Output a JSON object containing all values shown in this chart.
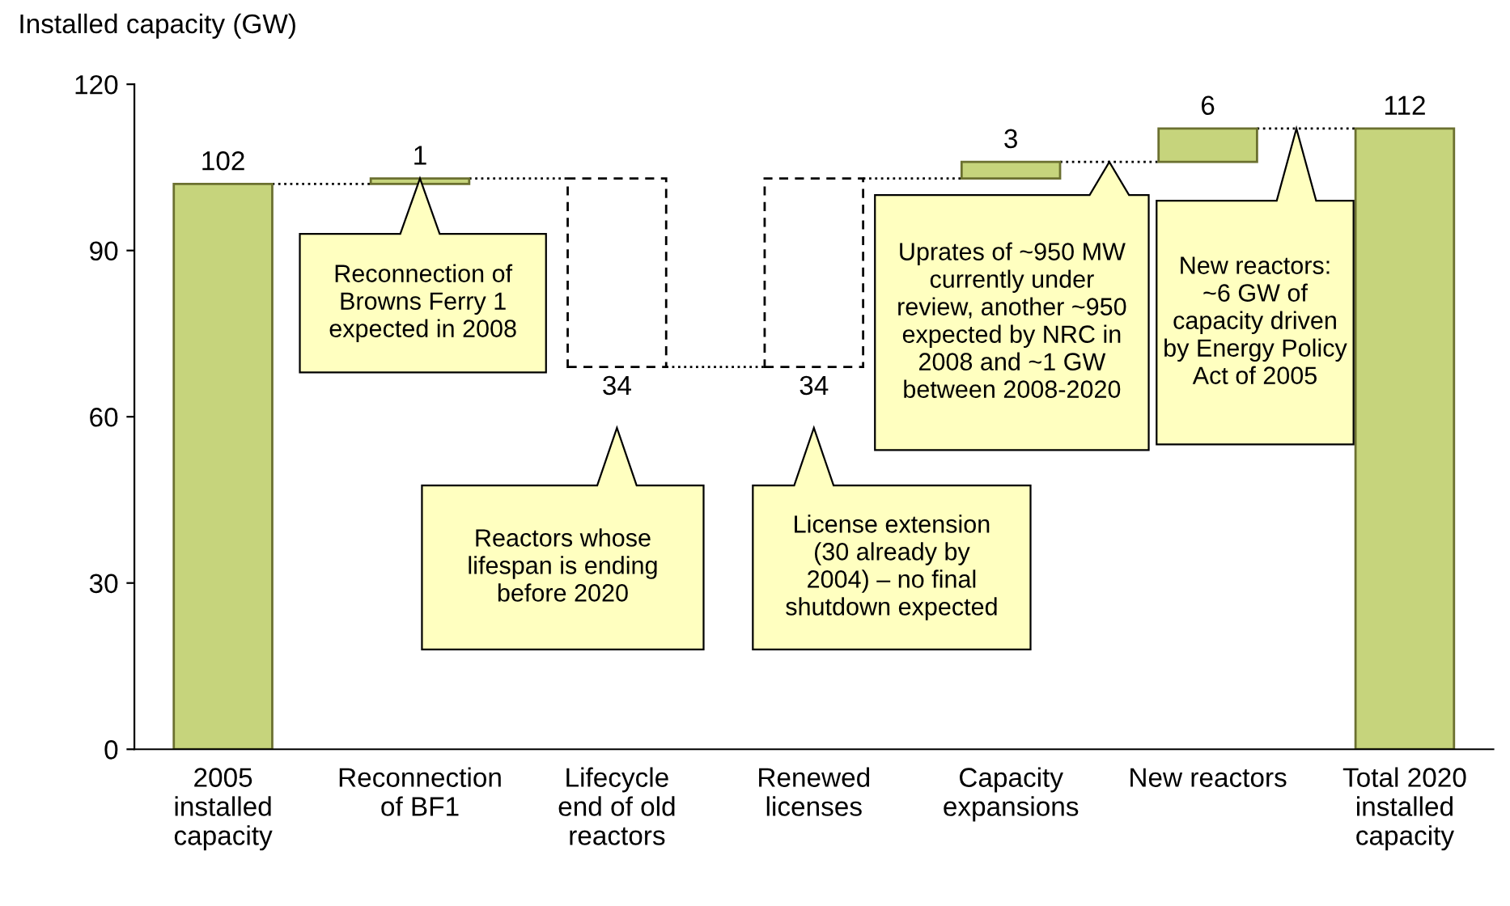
{
  "chart_data": {
    "type": "bar",
    "ylabel": "Installed capacity (GW)",
    "categories": [
      "2005\ninstalled\ncapacity",
      "Reconnection\nof BF1",
      "Lifecycle\nend of old\nreactors",
      "Renewed\nlicenses",
      "Capacity\nexpansions",
      "New reactors",
      "Total 2020\ninstalled\ncapacity"
    ],
    "series": [
      {
        "color": "#c6d47c",
        "line_style": "solid",
        "base": [
          0,
          102,
          null,
          null,
          103,
          106,
          0
        ],
        "values": [
          102,
          1,
          null,
          null,
          3,
          6,
          112
        ],
        "value_labels": [
          "102",
          "1",
          null,
          null,
          "3",
          "6",
          "112"
        ]
      },
      {
        "color": "#ffffff",
        "line_style": "dashed",
        "base": [
          null,
          null,
          69,
          69,
          null,
          null,
          null
        ],
        "values": [
          null,
          null,
          34,
          34,
          null,
          null,
          null
        ],
        "value_labels": [
          null,
          null,
          "34",
          "34",
          null,
          null,
          null
        ]
      }
    ],
    "ylim": [
      0,
      120
    ],
    "yticks": [
      0,
      30,
      60,
      90,
      120
    ],
    "grid": false,
    "annotations": [
      "Reconnection of\nBrowns Ferry 1\nexpected in 2008",
      "Reactors whose\nlifespan is ending\nbefore 2020",
      "License extension\n(30 already by\n2004) – no final\nshutdown expected",
      "Uprates of ~950 MW\ncurrently under\nreview, another ~950\nexpected by NRC in\n2008 and ~1 GW\nbetween 2008-2020",
      "New reactors:\n~6 GW of\ncapacity driven\nby Energy Policy\nAct of 2005"
    ]
  }
}
